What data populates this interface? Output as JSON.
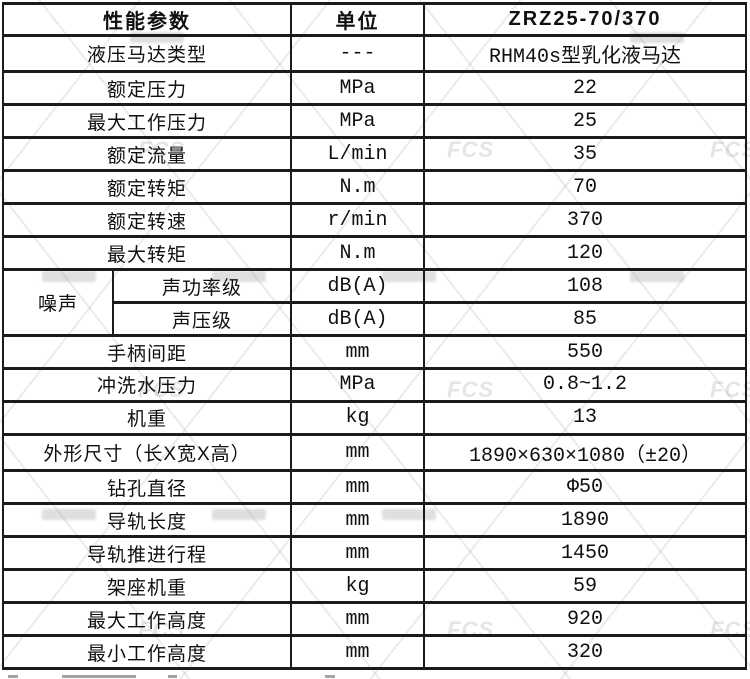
{
  "watermark": {
    "logo": "FCS"
  },
  "table": {
    "headers": [
      "性能参数",
      "单位",
      "ZRZ25-70/370"
    ],
    "rows": [
      {
        "param": "液压马达类型",
        "unit": "---",
        "value": "RHM40s型乳化液马达"
      },
      {
        "param": "额定压力",
        "unit": "MPa",
        "value": "22"
      },
      {
        "param": "最大工作压力",
        "unit": "MPa",
        "value": "25"
      },
      {
        "param": "额定流量",
        "unit": "L/min",
        "value": "35"
      },
      {
        "param": "额定转矩",
        "unit": "N.m",
        "value": "70"
      },
      {
        "param": "额定转速",
        "unit": "r/min",
        "value": "370"
      },
      {
        "param": "最大转矩",
        "unit": "N.m",
        "value": "120"
      },
      {
        "group": "噪声",
        "param": "声功率级",
        "unit": "dB(A)",
        "value": "108"
      },
      {
        "group_continue": true,
        "param": "声压级",
        "unit": "dB(A)",
        "value": "85"
      },
      {
        "param": "手柄间距",
        "unit": "mm",
        "value": "550"
      },
      {
        "param": "冲洗水压力",
        "unit": "MPa",
        "value": "0.8~1.2"
      },
      {
        "param": "机重",
        "unit": "kg",
        "value": "13"
      },
      {
        "param": "外形尺寸（长X宽X高）",
        "unit": "mm",
        "value": "1890×630×1080（±20）"
      },
      {
        "param": "钻孔直径",
        "unit": "mm",
        "value": "Φ50"
      },
      {
        "param": "导轨长度",
        "unit": "mm",
        "value": "1890"
      },
      {
        "param": "导轨推进行程",
        "unit": "mm",
        "value": "1450"
      },
      {
        "param": "架座机重",
        "unit": "kg",
        "value": "59"
      },
      {
        "param": "最大工作高度",
        "unit": "mm",
        "value": "920"
      },
      {
        "param": "最小工作高度",
        "unit": "mm",
        "value": "320"
      }
    ]
  }
}
